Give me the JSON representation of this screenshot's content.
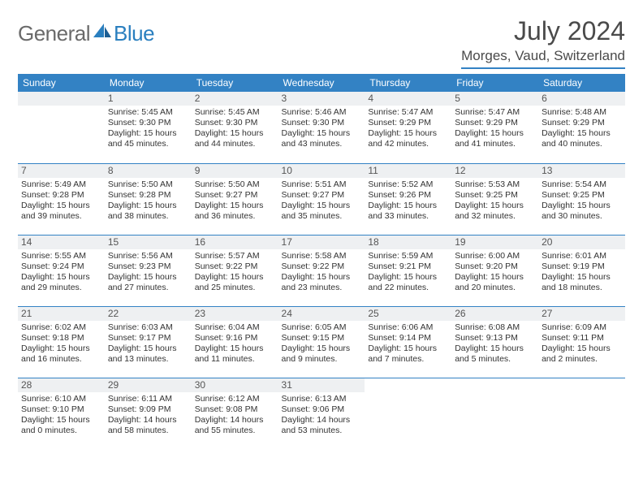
{
  "brand": {
    "part1": "General",
    "part2": "Blue"
  },
  "title": "July 2024",
  "location": "Morges, Vaud, Switzerland",
  "colors": {
    "header_bg": "#3382c4",
    "header_text": "#ffffff",
    "daynum_bg": "#eef0f2",
    "border": "#3382c4",
    "body_text": "#333333",
    "title_text": "#4a4a4a",
    "logo_gray": "#6a6a6a",
    "logo_blue": "#2a7fbf",
    "page_bg": "#ffffff"
  },
  "typography": {
    "title_fontsize": 32,
    "location_fontsize": 17,
    "dayhead_fontsize": 12,
    "daynum_fontsize": 12,
    "info_fontsize": 10.5
  },
  "daynames": [
    "Sunday",
    "Monday",
    "Tuesday",
    "Wednesday",
    "Thursday",
    "Friday",
    "Saturday"
  ],
  "weeks": [
    [
      null,
      {
        "n": "1",
        "sr": "Sunrise: 5:45 AM",
        "ss": "Sunset: 9:30 PM",
        "d1": "Daylight: 15 hours",
        "d2": "and 45 minutes."
      },
      {
        "n": "2",
        "sr": "Sunrise: 5:45 AM",
        "ss": "Sunset: 9:30 PM",
        "d1": "Daylight: 15 hours",
        "d2": "and 44 minutes."
      },
      {
        "n": "3",
        "sr": "Sunrise: 5:46 AM",
        "ss": "Sunset: 9:30 PM",
        "d1": "Daylight: 15 hours",
        "d2": "and 43 minutes."
      },
      {
        "n": "4",
        "sr": "Sunrise: 5:47 AM",
        "ss": "Sunset: 9:29 PM",
        "d1": "Daylight: 15 hours",
        "d2": "and 42 minutes."
      },
      {
        "n": "5",
        "sr": "Sunrise: 5:47 AM",
        "ss": "Sunset: 9:29 PM",
        "d1": "Daylight: 15 hours",
        "d2": "and 41 minutes."
      },
      {
        "n": "6",
        "sr": "Sunrise: 5:48 AM",
        "ss": "Sunset: 9:29 PM",
        "d1": "Daylight: 15 hours",
        "d2": "and 40 minutes."
      }
    ],
    [
      {
        "n": "7",
        "sr": "Sunrise: 5:49 AM",
        "ss": "Sunset: 9:28 PM",
        "d1": "Daylight: 15 hours",
        "d2": "and 39 minutes."
      },
      {
        "n": "8",
        "sr": "Sunrise: 5:50 AM",
        "ss": "Sunset: 9:28 PM",
        "d1": "Daylight: 15 hours",
        "d2": "and 38 minutes."
      },
      {
        "n": "9",
        "sr": "Sunrise: 5:50 AM",
        "ss": "Sunset: 9:27 PM",
        "d1": "Daylight: 15 hours",
        "d2": "and 36 minutes."
      },
      {
        "n": "10",
        "sr": "Sunrise: 5:51 AM",
        "ss": "Sunset: 9:27 PM",
        "d1": "Daylight: 15 hours",
        "d2": "and 35 minutes."
      },
      {
        "n": "11",
        "sr": "Sunrise: 5:52 AM",
        "ss": "Sunset: 9:26 PM",
        "d1": "Daylight: 15 hours",
        "d2": "and 33 minutes."
      },
      {
        "n": "12",
        "sr": "Sunrise: 5:53 AM",
        "ss": "Sunset: 9:25 PM",
        "d1": "Daylight: 15 hours",
        "d2": "and 32 minutes."
      },
      {
        "n": "13",
        "sr": "Sunrise: 5:54 AM",
        "ss": "Sunset: 9:25 PM",
        "d1": "Daylight: 15 hours",
        "d2": "and 30 minutes."
      }
    ],
    [
      {
        "n": "14",
        "sr": "Sunrise: 5:55 AM",
        "ss": "Sunset: 9:24 PM",
        "d1": "Daylight: 15 hours",
        "d2": "and 29 minutes."
      },
      {
        "n": "15",
        "sr": "Sunrise: 5:56 AM",
        "ss": "Sunset: 9:23 PM",
        "d1": "Daylight: 15 hours",
        "d2": "and 27 minutes."
      },
      {
        "n": "16",
        "sr": "Sunrise: 5:57 AM",
        "ss": "Sunset: 9:22 PM",
        "d1": "Daylight: 15 hours",
        "d2": "and 25 minutes."
      },
      {
        "n": "17",
        "sr": "Sunrise: 5:58 AM",
        "ss": "Sunset: 9:22 PM",
        "d1": "Daylight: 15 hours",
        "d2": "and 23 minutes."
      },
      {
        "n": "18",
        "sr": "Sunrise: 5:59 AM",
        "ss": "Sunset: 9:21 PM",
        "d1": "Daylight: 15 hours",
        "d2": "and 22 minutes."
      },
      {
        "n": "19",
        "sr": "Sunrise: 6:00 AM",
        "ss": "Sunset: 9:20 PM",
        "d1": "Daylight: 15 hours",
        "d2": "and 20 minutes."
      },
      {
        "n": "20",
        "sr": "Sunrise: 6:01 AM",
        "ss": "Sunset: 9:19 PM",
        "d1": "Daylight: 15 hours",
        "d2": "and 18 minutes."
      }
    ],
    [
      {
        "n": "21",
        "sr": "Sunrise: 6:02 AM",
        "ss": "Sunset: 9:18 PM",
        "d1": "Daylight: 15 hours",
        "d2": "and 16 minutes."
      },
      {
        "n": "22",
        "sr": "Sunrise: 6:03 AM",
        "ss": "Sunset: 9:17 PM",
        "d1": "Daylight: 15 hours",
        "d2": "and 13 minutes."
      },
      {
        "n": "23",
        "sr": "Sunrise: 6:04 AM",
        "ss": "Sunset: 9:16 PM",
        "d1": "Daylight: 15 hours",
        "d2": "and 11 minutes."
      },
      {
        "n": "24",
        "sr": "Sunrise: 6:05 AM",
        "ss": "Sunset: 9:15 PM",
        "d1": "Daylight: 15 hours",
        "d2": "and 9 minutes."
      },
      {
        "n": "25",
        "sr": "Sunrise: 6:06 AM",
        "ss": "Sunset: 9:14 PM",
        "d1": "Daylight: 15 hours",
        "d2": "and 7 minutes."
      },
      {
        "n": "26",
        "sr": "Sunrise: 6:08 AM",
        "ss": "Sunset: 9:13 PM",
        "d1": "Daylight: 15 hours",
        "d2": "and 5 minutes."
      },
      {
        "n": "27",
        "sr": "Sunrise: 6:09 AM",
        "ss": "Sunset: 9:11 PM",
        "d1": "Daylight: 15 hours",
        "d2": "and 2 minutes."
      }
    ],
    [
      {
        "n": "28",
        "sr": "Sunrise: 6:10 AM",
        "ss": "Sunset: 9:10 PM",
        "d1": "Daylight: 15 hours",
        "d2": "and 0 minutes."
      },
      {
        "n": "29",
        "sr": "Sunrise: 6:11 AM",
        "ss": "Sunset: 9:09 PM",
        "d1": "Daylight: 14 hours",
        "d2": "and 58 minutes."
      },
      {
        "n": "30",
        "sr": "Sunrise: 6:12 AM",
        "ss": "Sunset: 9:08 PM",
        "d1": "Daylight: 14 hours",
        "d2": "and 55 minutes."
      },
      {
        "n": "31",
        "sr": "Sunrise: 6:13 AM",
        "ss": "Sunset: 9:06 PM",
        "d1": "Daylight: 14 hours",
        "d2": "and 53 minutes."
      },
      null,
      null,
      null
    ]
  ]
}
